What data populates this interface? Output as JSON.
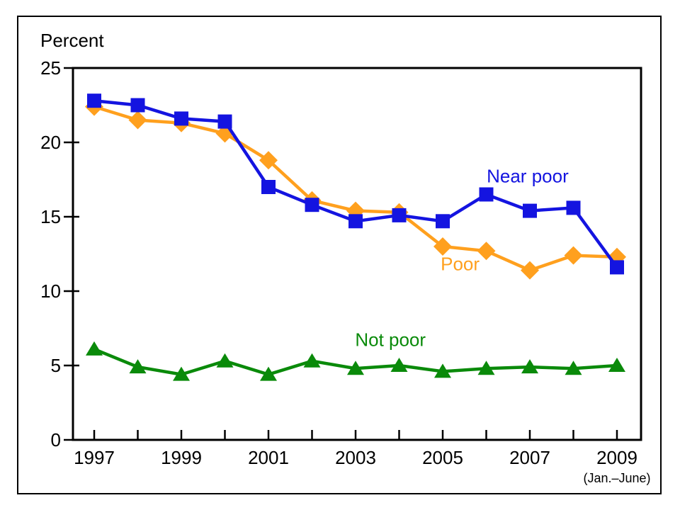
{
  "page": {
    "background": "#ffffff",
    "border_color": "#000000"
  },
  "chart_data": {
    "type": "line",
    "title": "Percent",
    "ylabel": "Percent",
    "xlabel": "",
    "x_note": "(Jan.–June)",
    "categories": [
      1997,
      1998,
      1999,
      2000,
      2001,
      2002,
      2003,
      2004,
      2005,
      2006,
      2007,
      2008,
      2009
    ],
    "x_tick_labels": [
      "1997",
      "",
      "1999",
      "",
      "2001",
      "",
      "2003",
      "",
      "2005",
      "",
      "2007",
      "",
      "2009"
    ],
    "ylim": [
      0,
      25
    ],
    "yticks": [
      0,
      5,
      10,
      15,
      20,
      25
    ],
    "grid": false,
    "legend": "inline-labels",
    "axis_color": "#000000",
    "series": [
      {
        "name": "Near poor",
        "color": "#1414e0",
        "marker": "square",
        "values": [
          22.8,
          22.5,
          21.6,
          21.4,
          17.0,
          15.8,
          14.7,
          15.1,
          14.7,
          16.5,
          15.4,
          15.6,
          11.6
        ],
        "label": {
          "text": "Near poor",
          "x": 2006.95,
          "y": 17.3
        }
      },
      {
        "name": "Poor",
        "color": "#ffa01e",
        "marker": "diamond",
        "values": [
          22.4,
          21.5,
          21.3,
          20.6,
          18.8,
          16.1,
          15.4,
          15.3,
          13.0,
          12.7,
          11.4,
          12.4,
          12.3
        ],
        "label": {
          "text": "Poor",
          "x": 2005.4,
          "y": 11.4
        }
      },
      {
        "name": "Not poor",
        "color": "#0a8a0a",
        "marker": "triangle",
        "values": [
          6.1,
          4.9,
          4.4,
          5.3,
          4.4,
          5.3,
          4.8,
          5.0,
          4.6,
          4.8,
          4.9,
          4.8,
          5.0
        ],
        "label": {
          "text": "Not poor",
          "x": 2003.8,
          "y": 6.3
        }
      }
    ]
  }
}
